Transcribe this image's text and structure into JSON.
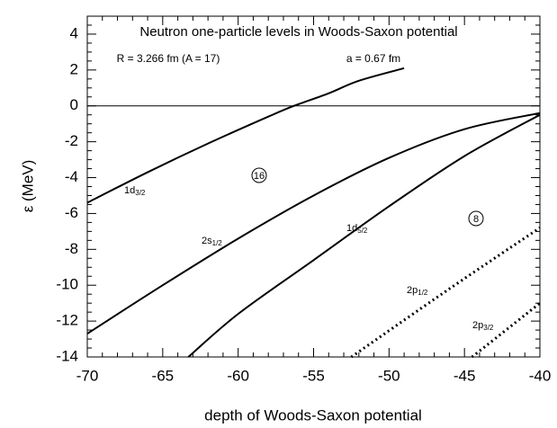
{
  "chart_data": {
    "type": "line",
    "title": "Neutron one-particle levels in Woods-Saxon potential",
    "annotations": [
      "R = 3.266 fm (A = 17)",
      "a = 0.67 fm",
      "16",
      "8"
    ],
    "x_label": "depth of Woods-Saxon potential",
    "y_label": "ε (MeV)",
    "xlim": [
      -70,
      -40
    ],
    "xticks": [
      -70,
      -65,
      -60,
      -55,
      -50,
      -45,
      -40
    ],
    "ylim": [
      -14,
      5
    ],
    "yticks": [
      -14,
      -12,
      -10,
      -8,
      -6,
      -4,
      -2,
      0,
      2,
      4
    ],
    "series": [
      {
        "name": "1d",
        "subscript": "3/2",
        "color": "#000000",
        "style": "solid",
        "x": [
          -70,
          -66,
          -62,
          -58,
          -56.3,
          -54,
          -52,
          -49
        ],
        "values": [
          -5.4,
          -3.7,
          -2.1,
          -0.6,
          0,
          0.7,
          1.4,
          2.1
        ]
      },
      {
        "name": "2s",
        "subscript": "1/2",
        "color": "#000000",
        "style": "solid",
        "x": [
          -70,
          -65,
          -60,
          -55,
          -50,
          -45,
          -40
        ],
        "values": [
          -12.7,
          -10.0,
          -7.4,
          -5.0,
          -2.9,
          -1.3,
          -0.4
        ]
      },
      {
        "name": "1d",
        "subscript": "5/2",
        "color": "#000000",
        "style": "solid",
        "x": [
          -63.3,
          -60,
          -55,
          -50,
          -45,
          -40
        ],
        "values": [
          -14,
          -11.6,
          -8.6,
          -5.6,
          -2.8,
          -0.5
        ]
      },
      {
        "name": "2p",
        "subscript": "1/2",
        "color": "#000000",
        "style": "dotted",
        "x": [
          -52.5,
          -46,
          -40
        ],
        "values": [
          -14,
          -10.2,
          -6.8
        ]
      },
      {
        "name": "2p",
        "subscript": "3/2",
        "color": "#000000",
        "style": "dotted",
        "x": [
          -44.5,
          -40
        ],
        "values": [
          -14,
          -11
        ]
      }
    ]
  }
}
